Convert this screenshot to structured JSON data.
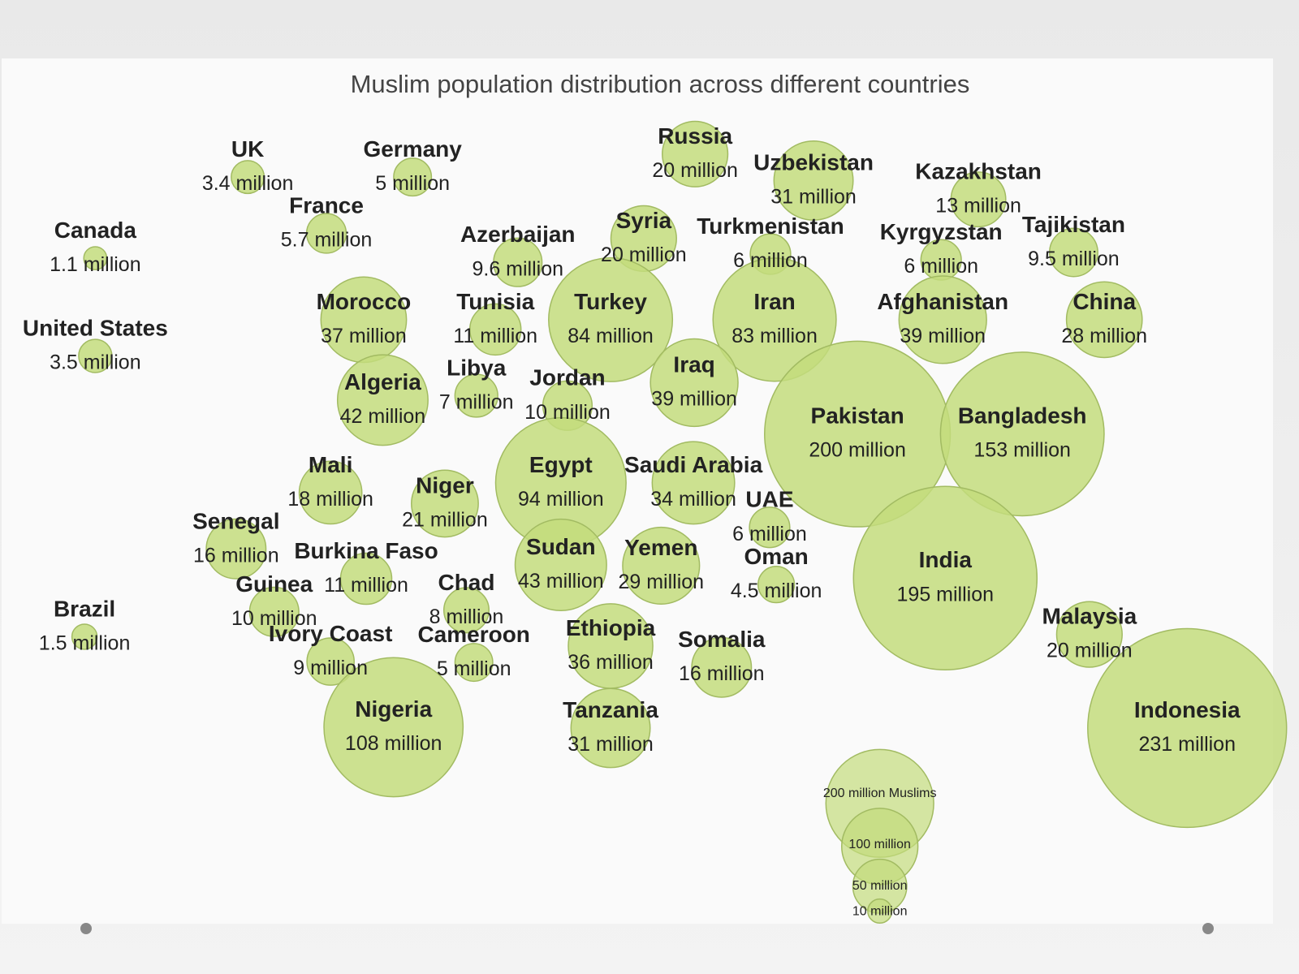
{
  "chart_data": {
    "type": "bubble",
    "title": "Muslim population distribution across different countries",
    "color": "#c3dc7c",
    "categories": [
      "UK",
      "Germany",
      "Canada",
      "France",
      "United States",
      "Russia",
      "Uzbekistan",
      "Kazakhstan",
      "Azerbaijan",
      "Syria",
      "Turkmenistan",
      "Kyrgyzstan",
      "Tajikistan",
      "Morocco",
      "Tunisia",
      "Turkey",
      "Iran",
      "Afghanistan",
      "China",
      "Iraq",
      "Algeria",
      "Libya",
      "Jordan",
      "Pakistan",
      "Bangladesh",
      "Mali",
      "Niger",
      "Egypt",
      "Saudi Arabia",
      "UAE",
      "Senegal",
      "Sudan",
      "Yemen",
      "Burkina Faso",
      "Oman",
      "India",
      "Guinea",
      "Chad",
      "Brazil",
      "Malaysia",
      "Ivory Coast",
      "Cameroon",
      "Ethiopia",
      "Somalia",
      "Nigeria",
      "Tanzania",
      "Indonesia"
    ],
    "values": [
      3.4,
      5,
      1.1,
      5.7,
      3.5,
      20,
      31,
      13,
      9.6,
      20,
      6,
      6,
      9.5,
      37,
      11,
      84,
      83,
      39,
      28,
      39,
      42,
      7,
      10,
      200,
      153,
      18,
      21,
      94,
      34,
      6,
      16,
      43,
      29,
      11,
      4.5,
      195,
      10,
      8,
      1.5,
      20,
      9,
      5,
      36,
      16,
      108,
      31,
      231
    ],
    "value_labels": [
      "3.4 million",
      "5 million",
      "1.1 million",
      "5.7 million",
      "3.5 million",
      "20 million",
      "31 million",
      "13 million",
      "9.6 million",
      "20 million",
      "6 million",
      "6 million",
      "9.5 million",
      "37 million",
      "11 million",
      "84 million",
      "83 million",
      "39 million",
      "28 million",
      "39 million",
      "42 million",
      "7 million",
      "10 million",
      "200 million",
      "153 million",
      "18 million",
      "21 million",
      "94 million",
      "34 million",
      "6 million",
      "16 million",
      "43 million",
      "29 million",
      "11 million",
      "4.5 million",
      "195 million",
      "10 million",
      "8 million",
      "1.5 million",
      "20 million",
      "9 million",
      "5 million",
      "36 million",
      "16 million",
      "108 million",
      "31 million",
      "231 million"
    ],
    "size_legend": {
      "values": [
        200,
        100,
        50,
        10
      ],
      "labels": [
        "200 million Muslims",
        "100 million",
        "50 million",
        "10 million"
      ]
    }
  }
}
